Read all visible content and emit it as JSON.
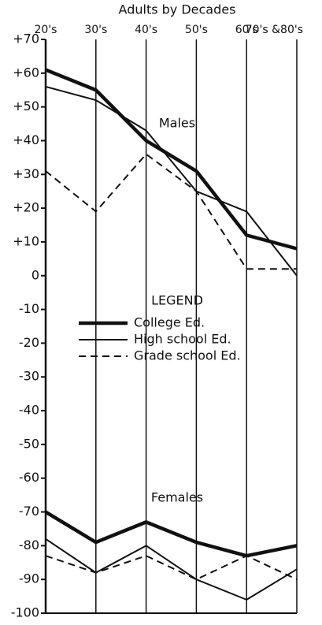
{
  "chart_data": {
    "type": "line",
    "title": "Adults by Decades",
    "categories": [
      "20's",
      "30's",
      "40's",
      "50's",
      "60's",
      "70's &80's"
    ],
    "annotations": {
      "males": "Males",
      "females": "Females",
      "legend": "LEGEND"
    },
    "series": [
      {
        "name": "College Ed.",
        "color": "#111111",
        "style": "thick",
        "males": [
          61,
          55,
          40,
          31,
          12,
          8
        ],
        "females": [
          -70,
          -79,
          -73,
          -79,
          -83,
          -80
        ]
      },
      {
        "name": "High school Ed.",
        "color": "#111111",
        "style": "thin",
        "males": [
          56,
          52,
          43,
          25,
          19,
          0
        ],
        "females": [
          -78,
          -88,
          -80,
          -90,
          -96,
          -87
        ]
      },
      {
        "name": "Grade school Ed.",
        "color": "#111111",
        "style": "dashed",
        "males": [
          31,
          19,
          36,
          25,
          2,
          2
        ],
        "females": [
          -83,
          -88,
          -83,
          -90,
          -83,
          -90
        ]
      }
    ],
    "ylim": [
      -100,
      70
    ],
    "yticks": [
      {
        "value": 70,
        "label": "+70"
      },
      {
        "value": 60,
        "label": "+60"
      },
      {
        "value": 50,
        "label": "+50"
      },
      {
        "value": 40,
        "label": "+40"
      },
      {
        "value": 30,
        "label": "+30"
      },
      {
        "value": 20,
        "label": "+20"
      },
      {
        "value": 10,
        "label": "+10"
      },
      0,
      -10,
      -20,
      -30,
      -40,
      -50,
      -60,
      -70,
      -80,
      -90,
      -100
    ]
  }
}
